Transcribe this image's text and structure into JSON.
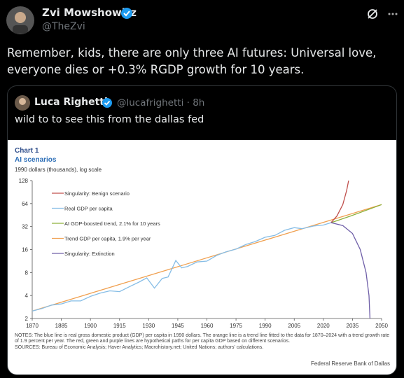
{
  "tweet": {
    "author": {
      "name": "Zvi Mowshowitz",
      "handle": "@TheZvi"
    },
    "text": "Remember, kids, there are only three AI futures: Universal love, everyone dies or +0.3% RGDP growth for 10 years.",
    "quote": {
      "author": {
        "name": "Luca Righetti",
        "handle": "@lucafrighetti",
        "time": "8h"
      },
      "text": "wild to to see this from the dallas fed"
    }
  },
  "chart_data": {
    "type": "line",
    "title": "Chart 1",
    "subtitle": "AI scenarios",
    "ylabel": "1990 dollars (thousands), log scale",
    "log_y": true,
    "xlim": [
      1870,
      2050
    ],
    "xticks": [
      1870,
      1885,
      1900,
      1915,
      1930,
      1945,
      1960,
      1975,
      1990,
      2005,
      2020,
      2035,
      2050
    ],
    "ylim": [
      2,
      128
    ],
    "yticks": [
      2,
      4,
      8,
      16,
      32,
      64,
      128
    ],
    "legend": "upper left",
    "series": [
      {
        "name": "Singularity: Benign scenario",
        "color": "#c0504d",
        "x": [
          2024,
          2027,
          2030,
          2032,
          2033
        ],
        "values": [
          36,
          44,
          62,
          95,
          128
        ]
      },
      {
        "name": "Real GDP per capita",
        "color": "#86bde6",
        "x": [
          1870,
          1875,
          1880,
          1885,
          1890,
          1895,
          1900,
          1905,
          1910,
          1915,
          1920,
          1925,
          1929,
          1933,
          1937,
          1940,
          1944,
          1947,
          1950,
          1955,
          1960,
          1965,
          1970,
          1975,
          1980,
          1985,
          1990,
          1995,
          2000,
          2005,
          2009,
          2015,
          2020,
          2024
        ],
        "values": [
          2.5,
          2.7,
          3.0,
          3.1,
          3.4,
          3.4,
          3.9,
          4.3,
          4.6,
          4.5,
          5.2,
          6.0,
          6.8,
          5.0,
          6.7,
          7.0,
          11.5,
          9.2,
          9.6,
          11.0,
          11.3,
          13.4,
          15.0,
          16.2,
          18.6,
          20.4,
          23.2,
          24.5,
          28.6,
          31,
          30,
          32.5,
          33.5,
          36
        ]
      },
      {
        "name": "AI GDP-boosted trend, 2.1% for 10 years",
        "color": "#8db13b",
        "x": [
          2024,
          2034,
          2050
        ],
        "values": [
          36,
          44,
          62
        ]
      },
      {
        "name": "Trend GDP per capita, 1.9% per year",
        "color": "#f0a050",
        "x": [
          1870,
          2050
        ],
        "values": [
          2.5,
          62
        ]
      },
      {
        "name": "Singularity: Extinction",
        "color": "#6f5fa8",
        "x": [
          2024,
          2030,
          2035,
          2039,
          2042,
          2043.5,
          2044
        ],
        "values": [
          36,
          33,
          26,
          16,
          8,
          4,
          2
        ]
      }
    ],
    "notes": "NOTES: The blue line is real gross domestic product (GDP) per capita in 1990 dollars. The orange line is a trend line fitted to the data for 1870–2024 with a trend growth rate of 1.9 percent per year. The red, green and purple lines are hypothetical paths for per capita GDP based on different scenarios.",
    "sources": "SOURCES: Bureau of Economic Analysis; Haver Analytics; Macrohistory.net; United Nations; authors' calculations.",
    "credit": "Federal Reserve Bank of Dallas"
  }
}
